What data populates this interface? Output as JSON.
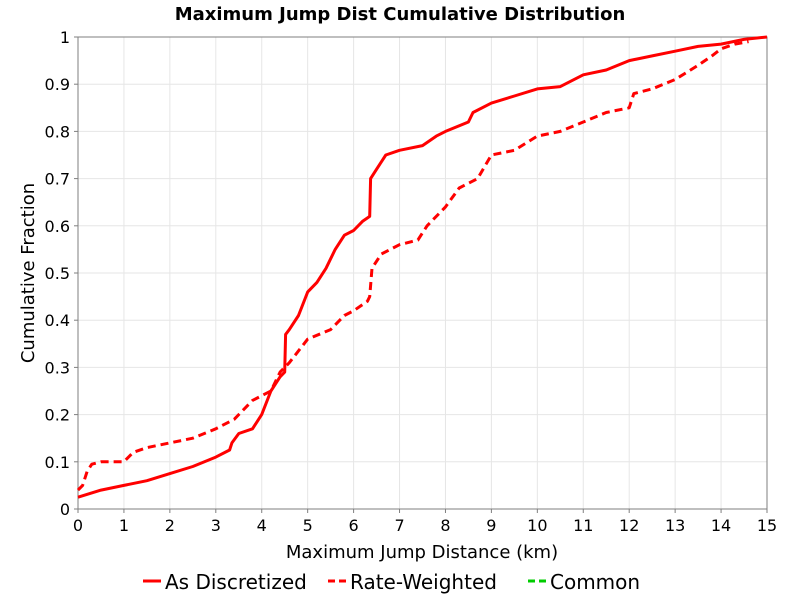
{
  "chart_data": {
    "type": "line",
    "title": "Maximum Jump Dist Cumulative Distribution",
    "xlabel": "Maximum Jump Distance (km)",
    "ylabel": "Cumulative Fraction",
    "xlim": [
      0,
      15
    ],
    "ylim": [
      0,
      1
    ],
    "x_ticks": [
      "0",
      "1",
      "2",
      "3",
      "4",
      "5",
      "6",
      "7",
      "8",
      "9",
      "10",
      "11",
      "12",
      "13",
      "14",
      "15"
    ],
    "y_ticks": [
      "0",
      "0.1",
      "0.2",
      "0.3",
      "0.4",
      "0.5",
      "0.6",
      "0.7",
      "0.8",
      "0.9",
      "1"
    ],
    "grid": true,
    "legend_position": "bottom",
    "series": [
      {
        "name": "As Discretized",
        "color": "#ff0000",
        "dash": "solid",
        "points": [
          [
            0,
            0.025
          ],
          [
            0.5,
            0.04
          ],
          [
            1,
            0.05
          ],
          [
            1.5,
            0.06
          ],
          [
            2,
            0.075
          ],
          [
            2.5,
            0.09
          ],
          [
            3,
            0.11
          ],
          [
            3.3,
            0.125
          ],
          [
            3.35,
            0.14
          ],
          [
            3.5,
            0.16
          ],
          [
            3.8,
            0.17
          ],
          [
            4.0,
            0.2
          ],
          [
            4.2,
            0.25
          ],
          [
            4.4,
            0.28
          ],
          [
            4.5,
            0.29
          ],
          [
            4.52,
            0.37
          ],
          [
            4.6,
            0.38
          ],
          [
            4.8,
            0.41
          ],
          [
            5.0,
            0.46
          ],
          [
            5.2,
            0.48
          ],
          [
            5.4,
            0.51
          ],
          [
            5.6,
            0.55
          ],
          [
            5.8,
            0.58
          ],
          [
            6.0,
            0.59
          ],
          [
            6.2,
            0.61
          ],
          [
            6.35,
            0.62
          ],
          [
            6.37,
            0.7
          ],
          [
            6.5,
            0.72
          ],
          [
            6.7,
            0.75
          ],
          [
            7.0,
            0.76
          ],
          [
            7.5,
            0.77
          ],
          [
            7.8,
            0.79
          ],
          [
            8.0,
            0.8
          ],
          [
            8.5,
            0.82
          ],
          [
            8.6,
            0.84
          ],
          [
            9.0,
            0.86
          ],
          [
            9.5,
            0.875
          ],
          [
            10.0,
            0.89
          ],
          [
            10.5,
            0.895
          ],
          [
            11.0,
            0.92
          ],
          [
            11.5,
            0.93
          ],
          [
            12.0,
            0.95
          ],
          [
            12.5,
            0.96
          ],
          [
            13.0,
            0.97
          ],
          [
            13.5,
            0.98
          ],
          [
            14.0,
            0.985
          ],
          [
            14.5,
            0.995
          ],
          [
            15.0,
            1.0
          ]
        ]
      },
      {
        "name": "Rate-Weighted",
        "color": "#ff0000",
        "dash": "dashed",
        "points": [
          [
            0,
            0.04
          ],
          [
            0.1,
            0.05
          ],
          [
            0.2,
            0.08
          ],
          [
            0.3,
            0.095
          ],
          [
            0.5,
            0.1
          ],
          [
            1.0,
            0.1
          ],
          [
            1.2,
            0.12
          ],
          [
            1.5,
            0.13
          ],
          [
            2.0,
            0.14
          ],
          [
            2.5,
            0.15
          ],
          [
            3.0,
            0.17
          ],
          [
            3.4,
            0.19
          ],
          [
            3.8,
            0.23
          ],
          [
            4.2,
            0.25
          ],
          [
            4.4,
            0.29
          ],
          [
            4.6,
            0.31
          ],
          [
            5.0,
            0.36
          ],
          [
            5.5,
            0.38
          ],
          [
            5.8,
            0.41
          ],
          [
            6.0,
            0.42
          ],
          [
            6.3,
            0.44
          ],
          [
            6.35,
            0.45
          ],
          [
            6.4,
            0.51
          ],
          [
            6.6,
            0.54
          ],
          [
            7.0,
            0.56
          ],
          [
            7.4,
            0.57
          ],
          [
            7.6,
            0.6
          ],
          [
            8.0,
            0.64
          ],
          [
            8.3,
            0.68
          ],
          [
            8.7,
            0.7
          ],
          [
            9.0,
            0.75
          ],
          [
            9.5,
            0.76
          ],
          [
            10.0,
            0.79
          ],
          [
            10.5,
            0.8
          ],
          [
            11.0,
            0.82
          ],
          [
            11.5,
            0.84
          ],
          [
            12.0,
            0.85
          ],
          [
            12.1,
            0.88
          ],
          [
            12.5,
            0.89
          ],
          [
            13.0,
            0.91
          ],
          [
            13.5,
            0.94
          ],
          [
            13.8,
            0.96
          ],
          [
            14.0,
            0.975
          ],
          [
            14.3,
            0.985
          ],
          [
            14.6,
            0.99
          ]
        ]
      },
      {
        "name": "Common",
        "color": "#00cc00",
        "dash": "dashed",
        "points": []
      }
    ]
  }
}
